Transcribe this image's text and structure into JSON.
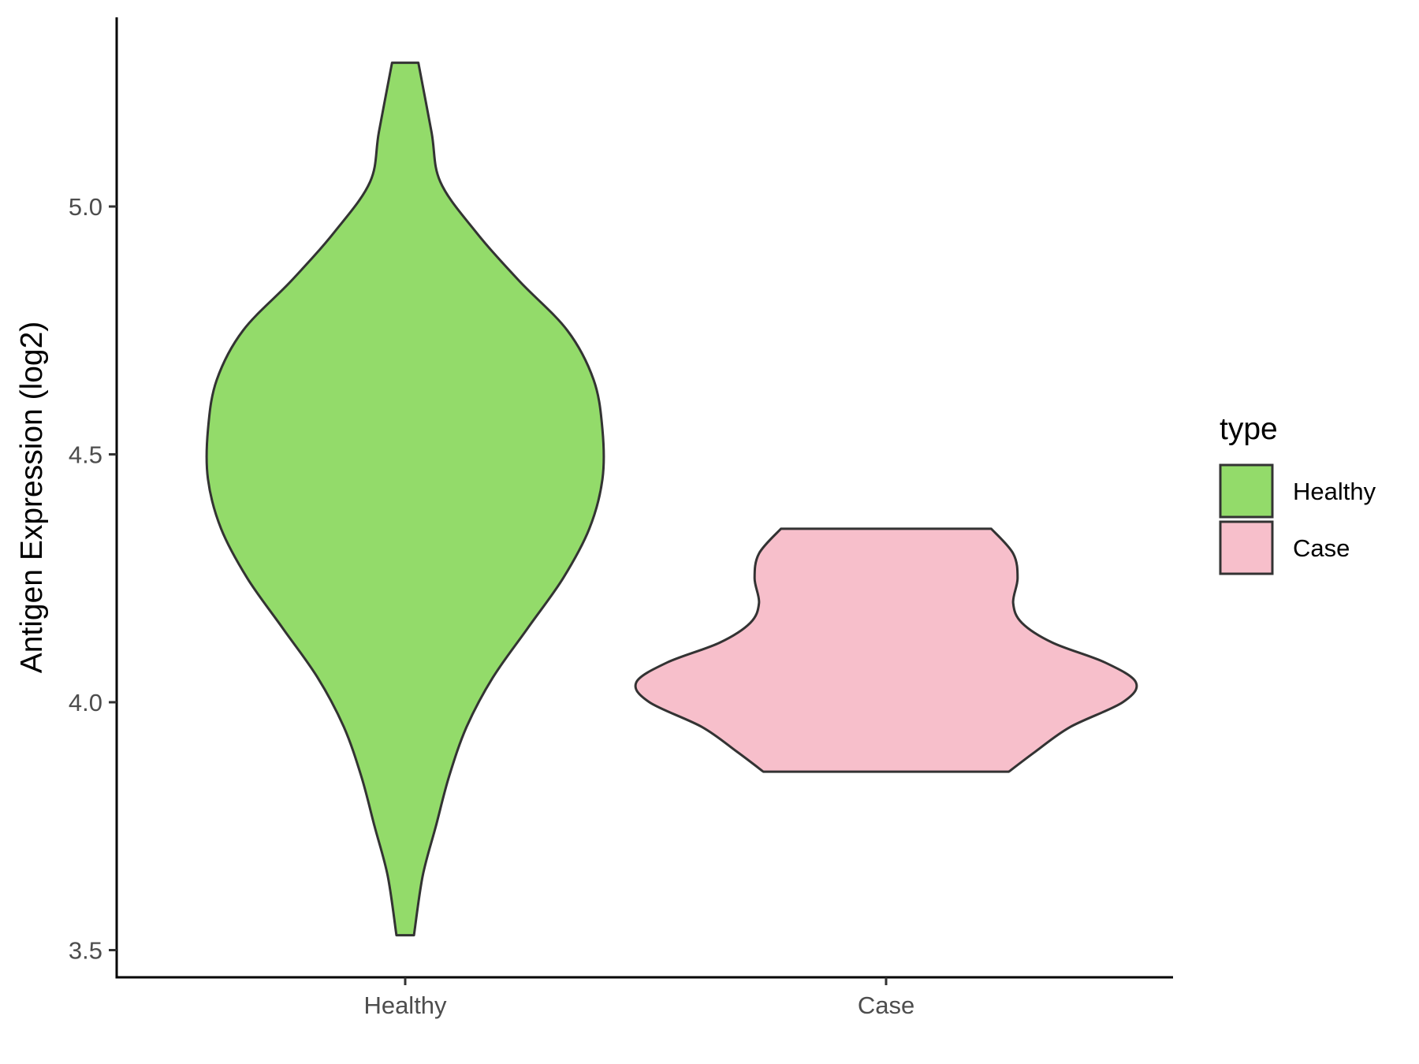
{
  "chart_data": {
    "type": "violin",
    "title": "",
    "xlabel": "",
    "ylabel": "Antigen Expression (log2)",
    "categories": [
      "Healthy",
      "Case"
    ],
    "y_ticks": [
      "3.5",
      "4.0",
      "4.5",
      "5.0"
    ],
    "y_tick_values": [
      3.5,
      4.0,
      4.5,
      5.0
    ],
    "ylim": [
      3.44,
      5.38
    ],
    "grid": false,
    "legend": {
      "title": "type",
      "position": "right",
      "entries": [
        {
          "label": "Healthy",
          "color": "#93DB6A"
        },
        {
          "label": "Case",
          "color": "#F7BFCB"
        }
      ]
    },
    "series": [
      {
        "name": "Healthy",
        "color": "#93DB6A",
        "min": 3.53,
        "max": 5.29,
        "density": [
          [
            3.53,
            0.02
          ],
          [
            3.65,
            0.04
          ],
          [
            3.75,
            0.07
          ],
          [
            3.85,
            0.1
          ],
          [
            3.95,
            0.14
          ],
          [
            4.05,
            0.2
          ],
          [
            4.15,
            0.28
          ],
          [
            4.25,
            0.36
          ],
          [
            4.35,
            0.42
          ],
          [
            4.45,
            0.45
          ],
          [
            4.55,
            0.45
          ],
          [
            4.65,
            0.43
          ],
          [
            4.75,
            0.37
          ],
          [
            4.85,
            0.26
          ],
          [
            4.95,
            0.16
          ],
          [
            5.05,
            0.08
          ],
          [
            5.15,
            0.06
          ],
          [
            5.29,
            0.03
          ]
        ]
      },
      {
        "name": "Case",
        "color": "#F7BFCB",
        "min": 3.86,
        "max": 4.35,
        "density": [
          [
            3.86,
            0.28
          ],
          [
            3.9,
            0.34
          ],
          [
            3.95,
            0.42
          ],
          [
            4.0,
            0.54
          ],
          [
            4.04,
            0.57
          ],
          [
            4.08,
            0.5
          ],
          [
            4.12,
            0.38
          ],
          [
            4.16,
            0.31
          ],
          [
            4.2,
            0.29
          ],
          [
            4.25,
            0.3
          ],
          [
            4.3,
            0.29
          ],
          [
            4.35,
            0.24
          ]
        ]
      }
    ]
  }
}
